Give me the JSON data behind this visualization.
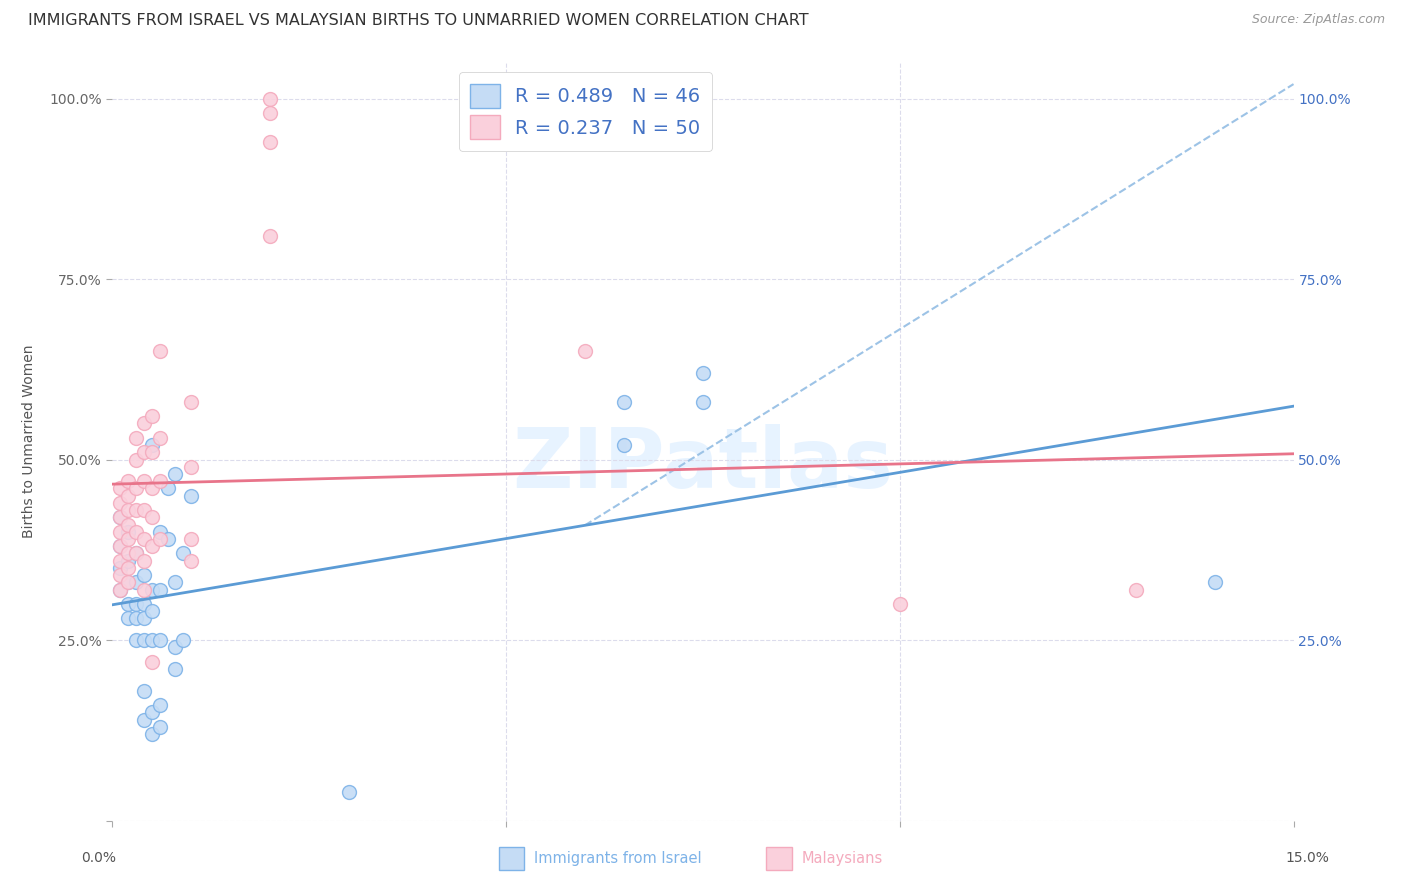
{
  "title": "IMMIGRANTS FROM ISRAEL VS MALAYSIAN BIRTHS TO UNMARRIED WOMEN CORRELATION CHART",
  "source": "Source: ZipAtlas.com",
  "ylabel": "Births to Unmarried Women",
  "ytick_labels_left": [
    "",
    "25.0%",
    "50.0%",
    "75.0%",
    "100.0%"
  ],
  "ytick_labels_right": [
    "",
    "25.0%",
    "50.0%",
    "75.0%",
    "100.0%"
  ],
  "ytick_values": [
    0.0,
    0.25,
    0.5,
    0.75,
    1.0
  ],
  "xtick_values": [
    0.0,
    0.05,
    0.1,
    0.15
  ],
  "xtick_labels": [
    "",
    "",
    "",
    ""
  ],
  "xlim": [
    0.0,
    0.15
  ],
  "ylim": [
    0.0,
    1.05
  ],
  "watermark": "ZIPatlas",
  "blue_scatter": [
    [
      0.001,
      0.42
    ],
    [
      0.001,
      0.38
    ],
    [
      0.001,
      0.35
    ],
    [
      0.001,
      0.32
    ],
    [
      0.002,
      0.4
    ],
    [
      0.002,
      0.36
    ],
    [
      0.002,
      0.33
    ],
    [
      0.002,
      0.3
    ],
    [
      0.002,
      0.28
    ],
    [
      0.003,
      0.37
    ],
    [
      0.003,
      0.33
    ],
    [
      0.003,
      0.3
    ],
    [
      0.003,
      0.28
    ],
    [
      0.003,
      0.25
    ],
    [
      0.004,
      0.34
    ],
    [
      0.004,
      0.3
    ],
    [
      0.004,
      0.28
    ],
    [
      0.004,
      0.25
    ],
    [
      0.004,
      0.18
    ],
    [
      0.004,
      0.14
    ],
    [
      0.005,
      0.52
    ],
    [
      0.005,
      0.32
    ],
    [
      0.005,
      0.29
    ],
    [
      0.005,
      0.25
    ],
    [
      0.005,
      0.15
    ],
    [
      0.005,
      0.12
    ],
    [
      0.006,
      0.4
    ],
    [
      0.006,
      0.32
    ],
    [
      0.006,
      0.25
    ],
    [
      0.006,
      0.16
    ],
    [
      0.006,
      0.13
    ],
    [
      0.007,
      0.46
    ],
    [
      0.007,
      0.39
    ],
    [
      0.008,
      0.48
    ],
    [
      0.008,
      0.33
    ],
    [
      0.008,
      0.24
    ],
    [
      0.008,
      0.21
    ],
    [
      0.009,
      0.37
    ],
    [
      0.009,
      0.25
    ],
    [
      0.01,
      0.45
    ],
    [
      0.065,
      0.58
    ],
    [
      0.065,
      0.52
    ],
    [
      0.075,
      0.62
    ],
    [
      0.075,
      0.58
    ],
    [
      0.03,
      0.04
    ],
    [
      0.14,
      0.33
    ]
  ],
  "pink_scatter": [
    [
      0.001,
      0.46
    ],
    [
      0.001,
      0.44
    ],
    [
      0.001,
      0.42
    ],
    [
      0.001,
      0.4
    ],
    [
      0.001,
      0.38
    ],
    [
      0.001,
      0.36
    ],
    [
      0.001,
      0.34
    ],
    [
      0.001,
      0.32
    ],
    [
      0.002,
      0.47
    ],
    [
      0.002,
      0.45
    ],
    [
      0.002,
      0.43
    ],
    [
      0.002,
      0.41
    ],
    [
      0.002,
      0.39
    ],
    [
      0.002,
      0.37
    ],
    [
      0.002,
      0.35
    ],
    [
      0.002,
      0.33
    ],
    [
      0.003,
      0.53
    ],
    [
      0.003,
      0.5
    ],
    [
      0.003,
      0.46
    ],
    [
      0.003,
      0.43
    ],
    [
      0.003,
      0.4
    ],
    [
      0.003,
      0.37
    ],
    [
      0.004,
      0.55
    ],
    [
      0.004,
      0.51
    ],
    [
      0.004,
      0.47
    ],
    [
      0.004,
      0.43
    ],
    [
      0.004,
      0.39
    ],
    [
      0.004,
      0.36
    ],
    [
      0.004,
      0.32
    ],
    [
      0.005,
      0.56
    ],
    [
      0.005,
      0.51
    ],
    [
      0.005,
      0.46
    ],
    [
      0.005,
      0.42
    ],
    [
      0.005,
      0.38
    ],
    [
      0.005,
      0.22
    ],
    [
      0.006,
      0.65
    ],
    [
      0.006,
      0.53
    ],
    [
      0.006,
      0.47
    ],
    [
      0.006,
      0.39
    ],
    [
      0.01,
      0.58
    ],
    [
      0.01,
      0.49
    ],
    [
      0.01,
      0.39
    ],
    [
      0.01,
      0.36
    ],
    [
      0.02,
      1.0
    ],
    [
      0.02,
      0.98
    ],
    [
      0.02,
      0.94
    ],
    [
      0.02,
      0.81
    ],
    [
      0.06,
      0.65
    ],
    [
      0.1,
      0.3
    ],
    [
      0.13,
      0.32
    ]
  ],
  "blue_line_color": "#5B9BD5",
  "pink_line_color": "#E8748A",
  "dashed_line_color": "#9DC3E6",
  "grid_color": "#DCDCEC",
  "grid_style": "--",
  "background_color": "#FFFFFF",
  "title_fontsize": 11.5,
  "axis_label_fontsize": 10,
  "tick_fontsize": 10,
  "right_tick_color": "#4472C4",
  "left_tick_color": "#666666",
  "marker_size": 100,
  "legend_R1": "R = 0.489",
  "legend_N1": "N = 46",
  "legend_R2": "R = 0.237",
  "legend_N2": "N = 50",
  "legend_R_color": "#000000",
  "legend_N_color": "#4472C4",
  "bottom_label1": "Immigrants from Israel",
  "bottom_label2": "Malaysians",
  "bottom_label1_color": "#7EB3E8",
  "bottom_label2_color": "#F4AABD"
}
